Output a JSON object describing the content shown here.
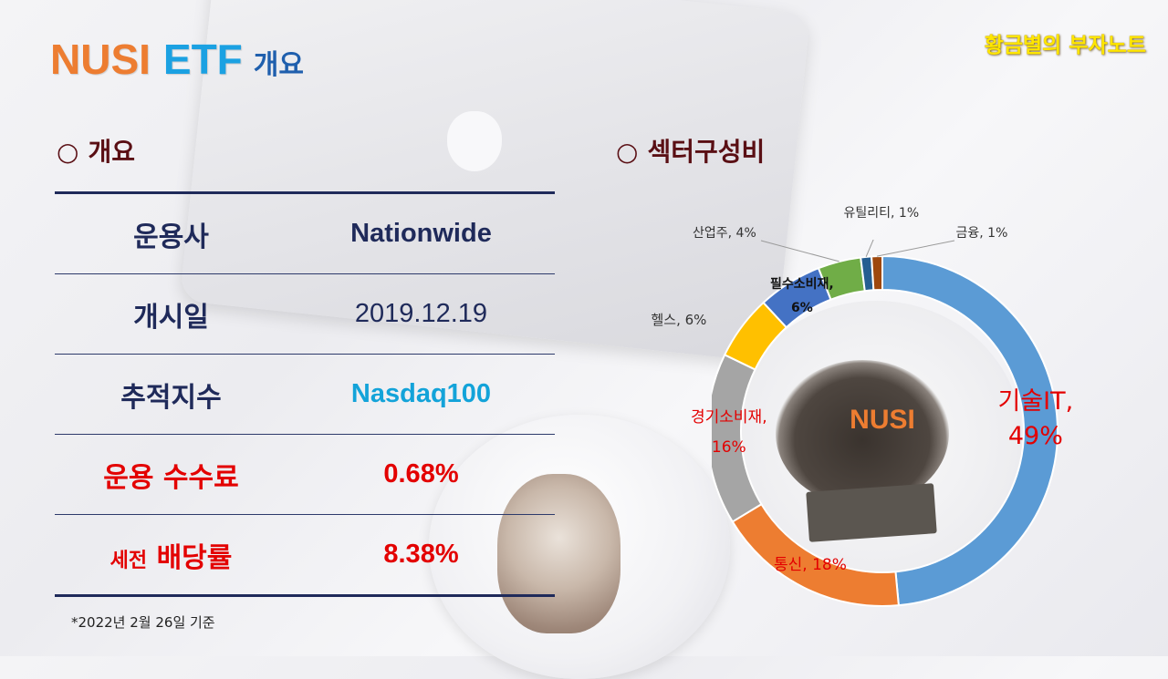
{
  "title": {
    "part1": "NUSI",
    "part2": "ETF",
    "part3": "개요"
  },
  "brand": "황금별의 부자노트",
  "section_overview": {
    "symbol": "○",
    "label": "개요"
  },
  "section_sector": {
    "symbol": "○",
    "label": "섹터구성비"
  },
  "overview_rows": [
    {
      "label": "운용사",
      "value": "Nationwide"
    },
    {
      "label": "개시일",
      "value": "2019.12.19"
    },
    {
      "label": "추적지수",
      "value": "Nasdaq100"
    },
    {
      "label": "운용 수수료",
      "value": "0.68%"
    },
    {
      "label_small": "세전",
      "label": "배당률",
      "value": "8.38%"
    }
  ],
  "footnote": "*2022년 2월 26일 기준",
  "chart_data": {
    "type": "pie",
    "center_label": "NUSI",
    "slices": [
      {
        "label": "기술IT",
        "value": 49,
        "color": "#5b9bd5",
        "text_lines": [
          "기술IT,",
          "49%"
        ]
      },
      {
        "label": "통신",
        "value": 18,
        "color": "#ed7d31",
        "text_lines": [
          "통신, 18%"
        ]
      },
      {
        "label": "경기소비재",
        "value": 16,
        "color": "#a5a5a5",
        "text_lines": [
          "경기소비재,",
          "16%"
        ]
      },
      {
        "label": "헬스",
        "value": 6,
        "color": "#ffc000",
        "text_lines": [
          "헬스, 6%"
        ]
      },
      {
        "label": "필수소비재",
        "value": 6,
        "color": "#4472c4",
        "text_lines": [
          "필수소비재,",
          "6%"
        ]
      },
      {
        "label": "산업주",
        "value": 4,
        "color": "#70ad47",
        "text_lines": [
          "산업주, 4%"
        ]
      },
      {
        "label": "유틸리티",
        "value": 1,
        "color": "#255e91",
        "text_lines": [
          "유틸리티, 1%"
        ]
      },
      {
        "label": "금융",
        "value": 1,
        "color": "#9e480e",
        "text_lines": [
          "금융, 1%"
        ]
      }
    ]
  }
}
